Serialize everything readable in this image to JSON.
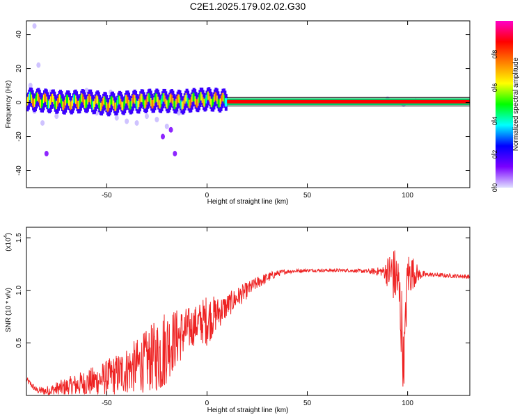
{
  "title": "C2E1.2025.179.02.02.G30",
  "chart_data": [
    {
      "type": "heatmap",
      "xlabel": "Height of straight line (km)",
      "ylabel": "Frequency (Hz)",
      "xlim": [
        -90,
        131
      ],
      "ylim": [
        -50,
        48
      ],
      "xticks": [
        -50,
        0,
        50,
        100
      ],
      "yticks": [
        -40,
        -20,
        0,
        20,
        40
      ],
      "grid": false,
      "colorbar": {
        "label": "Normalized spectral amplitude",
        "range": [
          0,
          1
        ],
        "ticks": [
          0.0,
          0.2,
          0.4,
          0.6,
          0.8
        ],
        "colormap": [
          "#e0e0ff",
          "#7a00ff",
          "#0000ff",
          "#00ffff",
          "#00ff00",
          "#ffff00",
          "#ff8000",
          "#ff0000",
          "#ff00c8"
        ]
      },
      "ridge": {
        "description_free": true,
        "segments": [
          {
            "x": [
              -90,
              -80,
              -70,
              -60,
              -50,
              -40,
              -30,
              -20,
              -10
            ],
            "freq": [
              2,
              1,
              0,
              1,
              -1,
              0,
              1,
              1,
              0
            ],
            "amp": 0.45
          },
          {
            "x": [
              -10,
              0,
              10
            ],
            "freq": [
              1,
              2,
              1
            ],
            "amp": 0.8
          },
          {
            "x": [
              10,
              131
            ],
            "freq": [
              0.5,
              0.5
            ],
            "amp": 1.0
          }
        ],
        "spread_points": [
          [
            -88,
            10
          ],
          [
            -86,
            -5
          ],
          [
            -84,
            22
          ],
          [
            -82,
            -12
          ],
          [
            -86,
            45
          ],
          [
            -80,
            -30
          ],
          [
            -78,
            6
          ],
          [
            -75,
            -8
          ],
          [
            -70,
            5
          ],
          [
            -60,
            7
          ],
          [
            -55,
            -6
          ],
          [
            -48,
            6
          ],
          [
            -45,
            -9
          ],
          [
            -40,
            -11
          ],
          [
            -35,
            -12
          ],
          [
            -30,
            -8
          ],
          [
            -25,
            -10
          ],
          [
            -20,
            -14
          ],
          [
            -18,
            -16
          ],
          [
            -16,
            -30
          ],
          [
            -14,
            -6
          ],
          [
            -22,
            -20
          ],
          [
            -3,
            4
          ],
          [
            3,
            3
          ],
          [
            90,
            2
          ],
          [
            98,
            -1
          ],
          [
            104,
            1
          ]
        ]
      }
    },
    {
      "type": "line",
      "xlabel": "Height of straight line (km)",
      "ylabel": "SNR (10 * v/v)",
      "multiplier_label": "(x10",
      "multiplier_exp": "4",
      "xlim": [
        -90,
        131
      ],
      "ylim": [
        0.0,
        1.6
      ],
      "xticks": [
        -50,
        0,
        50,
        100
      ],
      "yticks": [
        0.5,
        1.0,
        1.5
      ],
      "grid": false,
      "series": [
        {
          "color": "#ee2222",
          "envelope": {
            "x": [
              -90,
              -85,
              -80,
              -75,
              -70,
              -65,
              -60,
              -55,
              -50,
              -45,
              -40,
              -35,
              -30,
              -25,
              -22,
              -20,
              -15,
              -10,
              -5,
              0,
              5,
              10,
              15,
              20,
              25,
              30,
              35,
              40,
              50,
              60,
              70,
              80,
              88,
              92,
              95,
              97,
              98,
              100,
              103,
              106,
              110,
              120,
              131
            ],
            "base": [
              0.15,
              0.05,
              0.04,
              0.06,
              0.08,
              0.1,
              0.12,
              0.14,
              0.17,
              0.2,
              0.24,
              0.28,
              0.33,
              0.38,
              0.42,
              0.48,
              0.55,
              0.62,
              0.68,
              0.72,
              0.78,
              0.85,
              0.93,
              1.0,
              1.07,
              1.12,
              1.16,
              1.18,
              1.19,
              1.19,
              1.19,
              1.18,
              1.18,
              1.17,
              1.1,
              0.7,
              0.25,
              1.15,
              1.17,
              1.15,
              1.15,
              1.14,
              1.13
            ],
            "noise": [
              0.03,
              0.03,
              0.05,
              0.07,
              0.09,
              0.11,
              0.13,
              0.15,
              0.17,
              0.2,
              0.23,
              0.26,
              0.3,
              0.35,
              0.42,
              0.35,
              0.28,
              0.22,
              0.18,
              0.25,
              0.16,
              0.12,
              0.1,
              0.08,
              0.06,
              0.05,
              0.03,
              0.02,
              0.015,
              0.015,
              0.015,
              0.02,
              0.05,
              0.25,
              0.3,
              0.45,
              0.25,
              0.25,
              0.15,
              0.05,
              0.02,
              0.02,
              0.02
            ]
          }
        }
      ]
    }
  ]
}
